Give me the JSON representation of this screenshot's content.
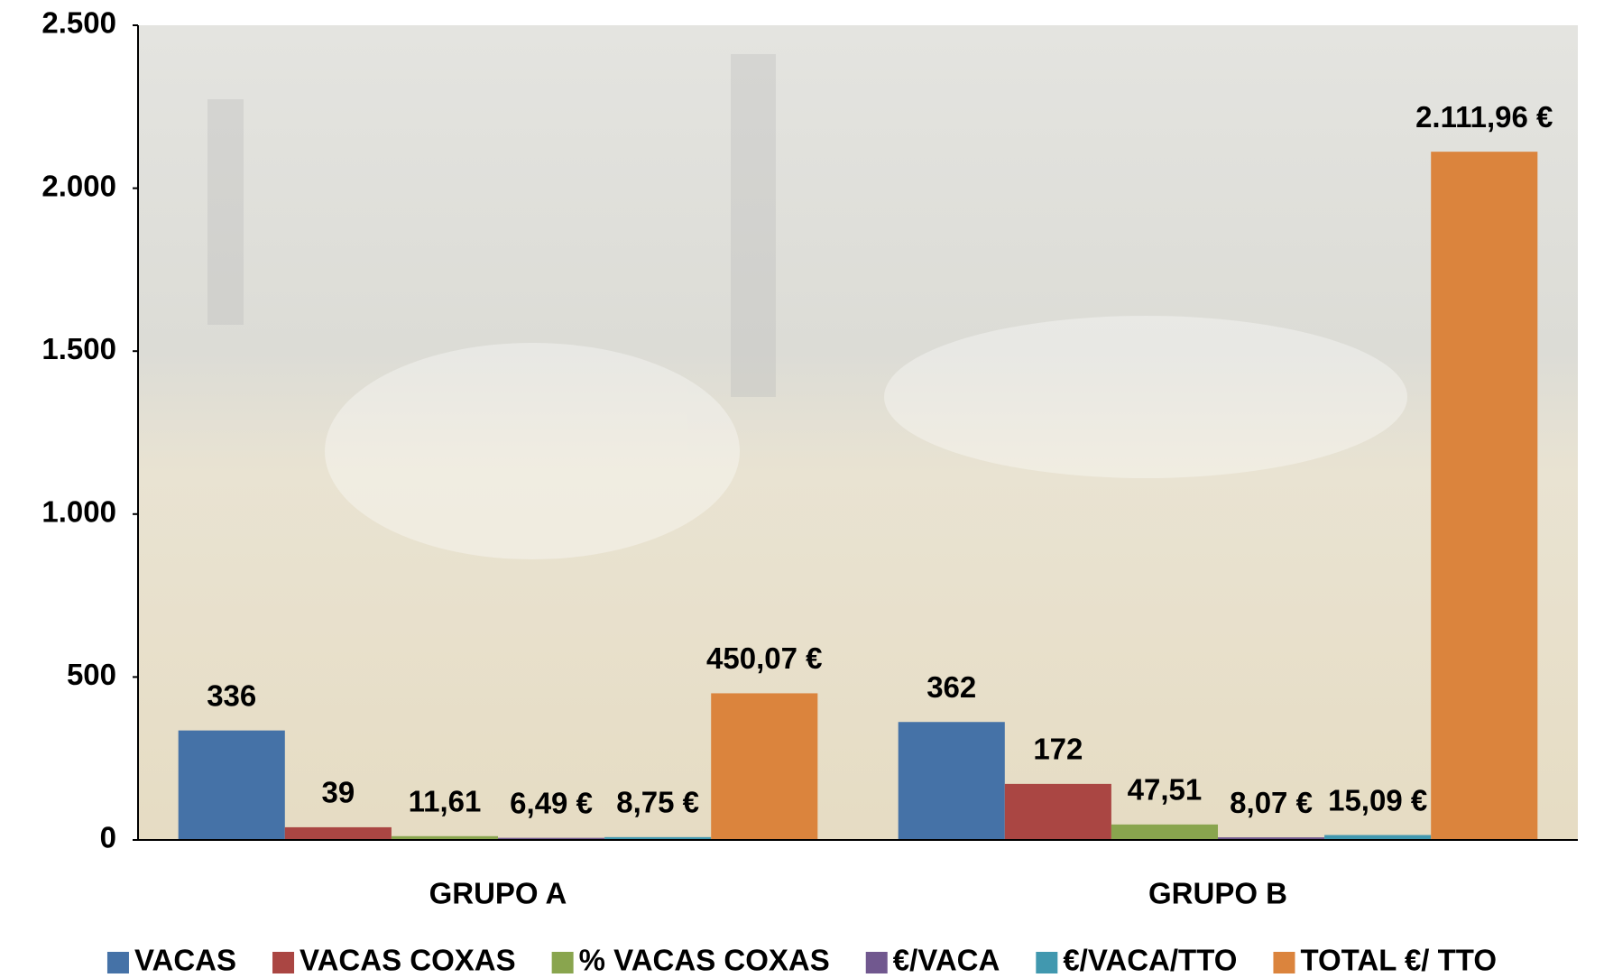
{
  "chart_data": {
    "type": "bar",
    "categories": [
      "GRUPO A",
      "GRUPO B"
    ],
    "series": [
      {
        "name": "VACAS",
        "color": "#4572a7",
        "values": [
          336,
          362
        ],
        "value_labels": [
          "336",
          "362"
        ]
      },
      {
        "name": "VACAS COXAS",
        "color": "#aa4643",
        "values": [
          39,
          172
        ],
        "value_labels": [
          "39",
          "172"
        ]
      },
      {
        "name": "% VACAS COXAS",
        "color": "#89a54e",
        "values": [
          11.61,
          47.51
        ],
        "value_labels": [
          "11,61",
          "47,51"
        ]
      },
      {
        "name": "€/VACA",
        "color": "#71588f",
        "values": [
          6.49,
          8.07
        ],
        "value_labels": [
          "6,49 €",
          "8,07 €"
        ]
      },
      {
        "name": "€/VACA/TTO",
        "color": "#4198af",
        "values": [
          8.75,
          15.09
        ],
        "value_labels": [
          "8,75 €",
          "15,09 €"
        ]
      },
      {
        "name": "TOTAL €/ TTO",
        "color": "#db843d",
        "values": [
          450.07,
          2111.96
        ],
        "value_labels": [
          "450,07 €",
          "2.111,96 €"
        ]
      }
    ],
    "ylim": [
      0,
      2500
    ],
    "yticks": [
      0,
      500,
      {
        "value": 1000,
        "label": "1.000"
      },
      {
        "value": 1500,
        "label": "1.500"
      },
      {
        "value": 2000,
        "label": "2.000"
      },
      {
        "value": 2500,
        "label": "2.500"
      }
    ],
    "legend": "bottom"
  }
}
